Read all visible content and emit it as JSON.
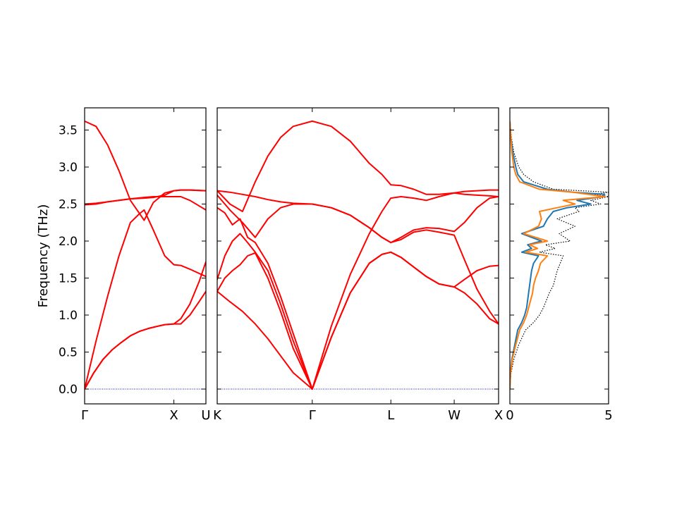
{
  "chart_data": [
    {
      "type": "line",
      "panel": "band-structure-left",
      "ylabel": "Frequency (THz)",
      "ylim": [
        -0.2,
        3.8
      ],
      "yticks": [
        "0.0",
        "0.5",
        "1.0",
        "1.5",
        "2.0",
        "2.5",
        "3.0",
        "3.5"
      ],
      "ytick_values": [
        0.0,
        0.5,
        1.0,
        1.5,
        2.0,
        2.5,
        3.0,
        3.5
      ],
      "xlim": [
        0.0,
        1.06
      ],
      "path_labels": [
        "Γ",
        "X",
        "U"
      ],
      "path_positions": [
        0.0,
        0.78,
        1.06
      ],
      "series_color": "#ff0000",
      "zero_line_color": "#0000cc",
      "series": [
        {
          "x": [
            0.0,
            0.1,
            0.2,
            0.3,
            0.4,
            0.48,
            0.52,
            0.6,
            0.7,
            0.78,
            0.84,
            0.92,
            1.06
          ],
          "values": [
            3.62,
            3.55,
            3.3,
            2.95,
            2.55,
            2.37,
            2.42,
            2.15,
            1.8,
            1.68,
            1.67,
            1.62,
            1.52
          ]
        },
        {
          "x": [
            0.0,
            0.1,
            0.2,
            0.3,
            0.4,
            0.52,
            0.6,
            0.7,
            0.78,
            0.84,
            0.92,
            1.06
          ],
          "values": [
            2.49,
            2.5,
            2.53,
            2.55,
            2.57,
            2.59,
            2.6,
            2.6,
            2.6,
            2.6,
            2.55,
            2.42
          ]
        },
        {
          "x": [
            0.0,
            0.1,
            0.2,
            0.3,
            0.4,
            0.52,
            0.6,
            0.7,
            0.78,
            0.84,
            0.92,
            1.06
          ],
          "values": [
            2.5,
            2.51,
            2.53,
            2.55,
            2.57,
            2.58,
            2.59,
            2.62,
            2.68,
            2.69,
            2.69,
            2.68
          ]
        },
        {
          "x": [
            0.0,
            0.1,
            0.2,
            0.3,
            0.4,
            0.48,
            0.52,
            0.6,
            0.7,
            0.78,
            0.84,
            0.92,
            1.06
          ],
          "values": [
            0.0,
            0.65,
            1.25,
            1.8,
            2.25,
            2.37,
            2.28,
            2.52,
            2.65,
            2.68,
            2.69,
            2.69,
            2.68
          ]
        },
        {
          "x": [
            0.0,
            0.08,
            0.16,
            0.24,
            0.32,
            0.4,
            0.48,
            0.56,
            0.64,
            0.7,
            0.78,
            0.84,
            0.92,
            1.0,
            1.06
          ],
          "values": [
            0.0,
            0.22,
            0.4,
            0.53,
            0.63,
            0.72,
            0.78,
            0.82,
            0.85,
            0.87,
            0.88,
            0.95,
            1.15,
            1.45,
            1.72
          ]
        },
        {
          "x": [
            0.0,
            0.08,
            0.16,
            0.24,
            0.32,
            0.4,
            0.48,
            0.56,
            0.64,
            0.7,
            0.78,
            0.84,
            0.92,
            1.0,
            1.06
          ],
          "values": [
            0.0,
            0.22,
            0.4,
            0.53,
            0.63,
            0.72,
            0.78,
            0.82,
            0.85,
            0.87,
            0.88,
            0.88,
            1.0,
            1.18,
            1.32
          ]
        }
      ]
    },
    {
      "type": "line",
      "panel": "band-structure-right",
      "ylim": [
        -0.2,
        3.8
      ],
      "xlim": [
        0.0,
        2.22
      ],
      "path_labels": [
        "K",
        "Γ",
        "L",
        "W",
        "X"
      ],
      "path_positions": [
        0.0,
        0.75,
        1.37,
        1.87,
        2.22
      ],
      "series_color": "#ff0000",
      "zero_line_color": "#0000cc",
      "series": [
        {
          "x": [
            0.0,
            0.1,
            0.2,
            0.3,
            0.4,
            0.5,
            0.6,
            0.75,
            0.9,
            1.05,
            1.2,
            1.3,
            1.37,
            1.45,
            1.55,
            1.65,
            1.75,
            1.87,
            1.95,
            2.05,
            2.15,
            2.22
          ],
          "values": [
            2.68,
            2.5,
            2.4,
            2.8,
            3.15,
            3.4,
            3.55,
            3.62,
            3.55,
            3.35,
            3.05,
            2.9,
            2.76,
            2.75,
            2.7,
            2.63,
            2.63,
            2.65,
            2.67,
            2.68,
            2.69,
            2.69
          ]
        },
        {
          "x": [
            0.0,
            0.1,
            0.2,
            0.3,
            0.4,
            0.5,
            0.6,
            0.75,
            0.9,
            1.05,
            1.2,
            1.3,
            1.37,
            1.45,
            1.55,
            1.65,
            1.75,
            1.87,
            1.95,
            2.05,
            2.15,
            2.22
          ],
          "values": [
            2.68,
            2.66,
            2.63,
            2.6,
            2.56,
            2.53,
            2.51,
            2.5,
            2.45,
            2.35,
            2.18,
            2.05,
            1.98,
            2.02,
            2.12,
            2.15,
            2.12,
            2.08,
            1.75,
            1.35,
            1.05,
            0.88
          ]
        },
        {
          "x": [
            0.0,
            0.1,
            0.2,
            0.3,
            0.4,
            0.5,
            0.6,
            0.75,
            0.9,
            1.05,
            1.2,
            1.3,
            1.37,
            1.45,
            1.55,
            1.65,
            1.75,
            1.87,
            1.95,
            2.05,
            2.15,
            2.22
          ],
          "values": [
            2.62,
            2.42,
            2.25,
            2.05,
            2.3,
            2.45,
            2.5,
            2.5,
            2.45,
            2.35,
            2.18,
            2.05,
            1.98,
            2.05,
            2.15,
            2.18,
            2.17,
            2.13,
            2.25,
            2.45,
            2.58,
            2.6
          ]
        },
        {
          "x": [
            0.0,
            0.06,
            0.12,
            0.18,
            0.24,
            0.3,
            0.4,
            0.5,
            0.6,
            0.75,
            0.9,
            1.05,
            1.2,
            1.3,
            1.37,
            1.45,
            1.55,
            1.65,
            1.75,
            1.87,
            1.95,
            2.05,
            2.15,
            2.22
          ],
          "values": [
            2.45,
            2.38,
            2.22,
            2.3,
            2.05,
            1.98,
            1.7,
            1.25,
            0.75,
            0.0,
            0.85,
            1.55,
            2.1,
            2.4,
            2.58,
            2.6,
            2.58,
            2.55,
            2.6,
            2.65,
            2.63,
            2.62,
            2.61,
            2.6
          ]
        },
        {
          "x": [
            0.0,
            0.06,
            0.12,
            0.18,
            0.24,
            0.3,
            0.4,
            0.5,
            0.6,
            0.75,
            0.9,
            1.05,
            1.2,
            1.3,
            1.37,
            1.45,
            1.55,
            1.65,
            1.75,
            1.87,
            1.95,
            2.05,
            2.15,
            2.22
          ],
          "values": [
            1.48,
            1.8,
            2.0,
            2.1,
            1.98,
            1.85,
            1.6,
            1.15,
            0.65,
            0.0,
            0.7,
            1.3,
            1.7,
            1.82,
            1.85,
            1.78,
            1.65,
            1.52,
            1.42,
            1.38,
            1.48,
            1.6,
            1.66,
            1.67
          ]
        },
        {
          "x": [
            0.0,
            0.06,
            0.12,
            0.18,
            0.24,
            0.3,
            0.4,
            0.5,
            0.6,
            0.75,
            0.9,
            1.05,
            1.2,
            1.3,
            1.37,
            1.45,
            1.55,
            1.65,
            1.75,
            1.87,
            1.95,
            2.05,
            2.15,
            2.22
          ],
          "values": [
            1.32,
            1.5,
            1.6,
            1.68,
            1.8,
            1.84,
            1.5,
            1.05,
            0.55,
            0.0,
            0.7,
            1.3,
            1.7,
            1.82,
            1.85,
            1.78,
            1.65,
            1.52,
            1.42,
            1.38,
            1.3,
            1.15,
            0.95,
            0.88
          ]
        },
        {
          "x": [
            0.0,
            0.1,
            0.2,
            0.3,
            0.4,
            0.5,
            0.6,
            0.75
          ],
          "values": [
            1.32,
            1.18,
            1.05,
            0.88,
            0.68,
            0.45,
            0.22,
            0.0
          ]
        }
      ]
    },
    {
      "type": "line",
      "panel": "density-of-states",
      "orientation": "horizontal",
      "ylim": [
        -0.2,
        3.8
      ],
      "xlim": [
        0,
        5
      ],
      "xticks": [
        "0",
        "5"
      ],
      "xtick_values": [
        0,
        5
      ],
      "series": [
        {
          "color": "#000000",
          "style": "dotted",
          "frequency": [
            0.0,
            0.2,
            0.4,
            0.6,
            0.8,
            0.9,
            1.0,
            1.1,
            1.2,
            1.3,
            1.4,
            1.5,
            1.6,
            1.7,
            1.8,
            1.85,
            1.9,
            1.95,
            2.0,
            2.1,
            2.2,
            2.3,
            2.4,
            2.45,
            2.5,
            2.55,
            2.6,
            2.63,
            2.66,
            2.7,
            2.8,
            2.9,
            3.0,
            3.2,
            3.4,
            3.62
          ],
          "dos": [
            0.0,
            0.05,
            0.2,
            0.45,
            0.8,
            1.2,
            1.5,
            1.7,
            1.85,
            2.0,
            2.2,
            2.3,
            2.4,
            2.55,
            2.7,
            1.5,
            2.3,
            1.8,
            3.05,
            2.5,
            3.3,
            2.4,
            3.5,
            3.3,
            4.6,
            4.1,
            5.0,
            4.3,
            5.0,
            2.2,
            1.2,
            0.7,
            0.45,
            0.2,
            0.08,
            0.0
          ]
        },
        {
          "color": "#1f77b4",
          "style": "solid",
          "frequency": [
            0.0,
            0.2,
            0.4,
            0.6,
            0.8,
            0.9,
            1.0,
            1.1,
            1.2,
            1.3,
            1.4,
            1.5,
            1.6,
            1.7,
            1.8,
            1.85,
            1.9,
            1.95,
            2.0,
            2.1,
            2.2,
            2.3,
            2.4,
            2.45,
            2.5,
            2.55,
            2.6,
            2.63,
            2.66,
            2.7,
            2.8,
            2.9,
            3.0,
            3.2,
            3.4,
            3.62
          ],
          "dos": [
            0.0,
            0.03,
            0.1,
            0.25,
            0.4,
            0.6,
            0.75,
            0.85,
            0.9,
            0.95,
            1.0,
            1.05,
            1.1,
            1.2,
            1.45,
            0.6,
            1.1,
            0.9,
            1.6,
            0.6,
            1.7,
            1.9,
            2.2,
            2.9,
            4.1,
            3.4,
            4.7,
            4.8,
            3.2,
            1.9,
            0.7,
            0.4,
            0.3,
            0.15,
            0.05,
            0.0
          ]
        },
        {
          "color": "#ff7f0e",
          "style": "solid",
          "frequency": [
            0.0,
            0.2,
            0.4,
            0.6,
            0.8,
            0.9,
            1.0,
            1.1,
            1.2,
            1.3,
            1.4,
            1.5,
            1.6,
            1.7,
            1.8,
            1.85,
            1.9,
            1.95,
            2.0,
            2.1,
            2.2,
            2.3,
            2.4,
            2.45,
            2.5,
            2.55,
            2.6,
            2.63,
            2.66,
            2.7,
            2.8,
            2.9,
            3.0,
            3.2,
            3.4,
            3.62
          ],
          "dos": [
            0.0,
            0.03,
            0.12,
            0.3,
            0.5,
            0.7,
            0.85,
            0.95,
            1.05,
            1.15,
            1.2,
            1.3,
            1.45,
            1.55,
            1.9,
            0.8,
            1.4,
            1.0,
            1.9,
            0.7,
            1.45,
            1.6,
            1.5,
            2.4,
            3.3,
            2.7,
            4.8,
            4.0,
            3.2,
            1.5,
            0.5,
            0.3,
            0.2,
            0.1,
            0.05,
            0.0
          ]
        }
      ]
    }
  ]
}
